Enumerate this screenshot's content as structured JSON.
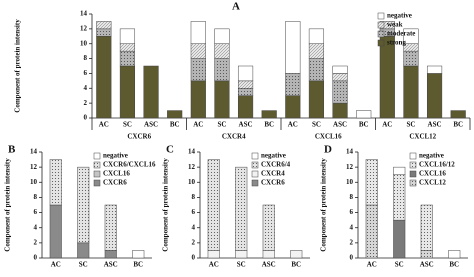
{
  "chart_data": [
    {
      "type": "bar",
      "stacked": true,
      "title": "A",
      "y_label": "Component of protein intensity",
      "groups": [
        "CXCR6",
        "CXCR4",
        "CXCL16",
        "CXCL12"
      ],
      "categories": [
        "AC",
        "SC",
        "ASC",
        "BC",
        "AC",
        "SC",
        "ASC",
        "BC",
        "AC",
        "SC",
        "ASC",
        "BC",
        "AC",
        "SC",
        "ASC",
        "BC"
      ],
      "series": [
        {
          "name": "strong",
          "color": "#5c5a2e",
          "pattern": "solid",
          "values": [
            11,
            7,
            7,
            1,
            5,
            5,
            3,
            1,
            3,
            5,
            2,
            0,
            11,
            7,
            6,
            1
          ]
        },
        {
          "name": "moderate",
          "color": "#b5b5b5",
          "pattern": "dots",
          "values": [
            1,
            2,
            0,
            0,
            3,
            3,
            1,
            0,
            3,
            3,
            3,
            0,
            1,
            2,
            0,
            0
          ]
        },
        {
          "name": "weak",
          "color": "#e6e6e6",
          "pattern": "hatch",
          "values": [
            1,
            1,
            0,
            0,
            2,
            2,
            1,
            0,
            0,
            2,
            1,
            0,
            1,
            1,
            0,
            0
          ]
        },
        {
          "name": "negative",
          "color": "#ffffff",
          "pattern": "solid",
          "values": [
            0,
            2,
            0,
            0,
            3,
            2,
            2,
            0,
            7,
            2,
            1,
            1,
            0,
            2,
            1,
            0
          ]
        }
      ],
      "ylim": [
        0,
        14
      ],
      "yticks": [
        0,
        2,
        4,
        6,
        8,
        10,
        12,
        14
      ],
      "legend": "upper right"
    },
    {
      "type": "bar",
      "stacked": true,
      "title": "B",
      "y_label": "Component of protein intensity",
      "categories": [
        "AC",
        "SC",
        "ASC",
        "BC"
      ],
      "series": [
        {
          "name": "CXCR6",
          "color": "#8a8a8a",
          "pattern": "solid",
          "values": [
            7,
            2,
            1,
            0
          ]
        },
        {
          "name": "CXCL16",
          "color": "#c4c4c4",
          "pattern": "solid",
          "values": [
            0,
            0,
            0,
            0
          ]
        },
        {
          "name": "CXCR6/CXCL16",
          "color": "#e4e4e4",
          "pattern": "dots",
          "values": [
            6,
            10,
            6,
            0
          ]
        },
        {
          "name": "negative",
          "color": "#ffffff",
          "pattern": "solid",
          "values": [
            0,
            0,
            0,
            1
          ]
        }
      ],
      "ylim": [
        0,
        14
      ],
      "yticks": [
        0,
        2,
        4,
        6,
        8,
        10,
        12,
        14
      ],
      "legend": "upper right"
    },
    {
      "type": "bar",
      "stacked": true,
      "title": "C",
      "y_label": "Component of protein intensity",
      "categories": [
        "AC",
        "SC",
        "ASC",
        "BC"
      ],
      "series": [
        {
          "name": "CXCR6",
          "color": "#8a8a8a",
          "pattern": "solid",
          "values": [
            0,
            0,
            0,
            0
          ]
        },
        {
          "name": "CXCR4",
          "color": "#f2f2f2",
          "pattern": "solid",
          "values": [
            1,
            1,
            1,
            1
          ]
        },
        {
          "name": "CXCR6/4",
          "color": "#e4e4e4",
          "pattern": "dots",
          "values": [
            12,
            11,
            6,
            0
          ]
        },
        {
          "name": "negative",
          "color": "#ffffff",
          "pattern": "solid",
          "values": [
            0,
            0,
            0,
            0
          ]
        }
      ],
      "ylim": [
        0,
        14
      ],
      "yticks": [
        0,
        2,
        4,
        6,
        8,
        10,
        12,
        14
      ],
      "legend": "upper right"
    },
    {
      "type": "bar",
      "stacked": true,
      "title": "D",
      "y_label": "Component of protein intensity",
      "categories": [
        "AC",
        "SC",
        "ASC",
        "BC"
      ],
      "series": [
        {
          "name": "CXCL12",
          "color": "#d6d6d6",
          "pattern": "dots",
          "values": [
            7,
            0,
            1,
            0
          ]
        },
        {
          "name": "CXCL16",
          "color": "#7a7a7a",
          "pattern": "solid",
          "values": [
            0,
            5,
            0,
            0
          ]
        },
        {
          "name": "CXCL16/12",
          "color": "#e8e8e8",
          "pattern": "dots",
          "values": [
            6,
            6,
            6,
            0
          ]
        },
        {
          "name": "negative",
          "color": "#ffffff",
          "pattern": "solid",
          "values": [
            0,
            1,
            0,
            1
          ]
        }
      ],
      "ylim": [
        0,
        14
      ],
      "yticks": [
        0,
        2,
        4,
        6,
        8,
        10,
        12,
        14
      ],
      "legend": "upper right"
    }
  ]
}
